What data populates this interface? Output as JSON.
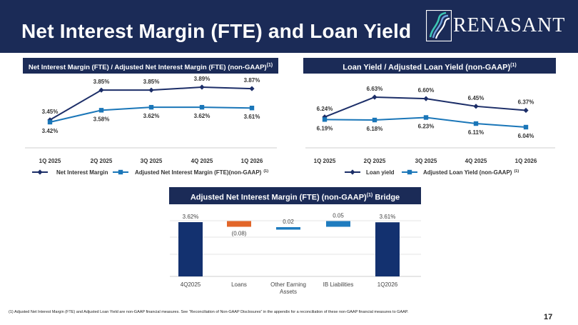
{
  "page": {
    "title": "Net Interest Margin (FTE) and Loan Yield",
    "logo_text": "RENASANT",
    "footnote": "(1)    Adjusted Net Interest Margin (FTE) and Adjusted Loan Yield are non-GAAP financial measures. See “Reconciliation of Non-GAAP Disclosures” in the appendix for a reconciliation of these non-GAAP financial measures to GAAP.",
    "page_number": "17",
    "colors": {
      "navy": "#1b2b57",
      "dark_line": "#1c2e68",
      "blue_line": "#1a76b8",
      "bar_navy": "#13316f",
      "bar_orange": "#e2662a",
      "bar_blue": "#1f7cbf"
    }
  },
  "banners": {
    "left": "Net Interest Margin (FTE) / Adjusted Net Interest Margin (FTE) (non-GAAP)",
    "right": "Loan Yield / Adjusted Loan Yield (non-GAAP)",
    "bottom": "Adjusted Net Interest Margin (FTE) (non-GAAP)",
    "bottom_suffix": " Bridge",
    "sup": "(1)"
  },
  "chart_data": [
    {
      "type": "line",
      "title": "Net Interest Margin (FTE) / Adjusted Net Interest Margin (FTE) (non-GAAP)(1)",
      "categories": [
        "1Q 2025",
        "2Q 2025",
        "3Q 2025",
        "4Q 2025",
        "1Q 2026"
      ],
      "series": [
        {
          "name": "Net Interest Margin",
          "marker": "diamond",
          "values": [
            3.45,
            3.85,
            3.85,
            3.89,
            3.87
          ],
          "labels": [
            "3.45%",
            "3.85%",
            "3.85%",
            "3.89%",
            "3.87%"
          ]
        },
        {
          "name": "Adjusted Net Interest Margin (FTE)(non-GAAP)",
          "legend_sup": "(1)",
          "marker": "square",
          "values": [
            3.42,
            3.58,
            3.62,
            3.62,
            3.61
          ],
          "labels": [
            "3.42%",
            "3.58%",
            "3.62%",
            "3.62%",
            "3.61%"
          ]
        }
      ],
      "legend_position": "bottom",
      "grid": false
    },
    {
      "type": "line",
      "title": "Loan Yield / Adjusted Loan Yield (non-GAAP)(1)",
      "categories": [
        "1Q 2025",
        "2Q 2025",
        "3Q 2025",
        "4Q 2025",
        "1Q 2026"
      ],
      "series": [
        {
          "name": "Loan yield",
          "marker": "diamond",
          "values": [
            6.24,
            6.63,
            6.6,
            6.45,
            6.37
          ],
          "labels": [
            "6.24%",
            "6.63%",
            "6.60%",
            "6.45%",
            "6.37%"
          ]
        },
        {
          "name": "Adjusted Loan Yield (non-GAAP)",
          "legend_sup": "(1)",
          "marker": "square",
          "values": [
            6.19,
            6.18,
            6.23,
            6.11,
            6.04
          ],
          "labels": [
            "6.19%",
            "6.18%",
            "6.23%",
            "6.11%",
            "6.04%"
          ]
        }
      ],
      "legend_position": "bottom",
      "grid": false
    },
    {
      "type": "bar",
      "subtype": "waterfall",
      "title": "Adjusted Net Interest Margin (FTE) (non-GAAP)(1) Bridge",
      "categories": [
        "4Q2025",
        "Loans",
        "Other Earning Assets",
        "IB Liabilities",
        "1Q2026"
      ],
      "values": [
        3.62,
        -0.08,
        0.02,
        0.05,
        3.61
      ],
      "labels": [
        "3.62%",
        "(0.08)",
        "0.02",
        "0.05",
        "3.61%"
      ],
      "bar_kinds": [
        "total",
        "delta",
        "delta",
        "delta",
        "total"
      ],
      "grid": true
    }
  ]
}
